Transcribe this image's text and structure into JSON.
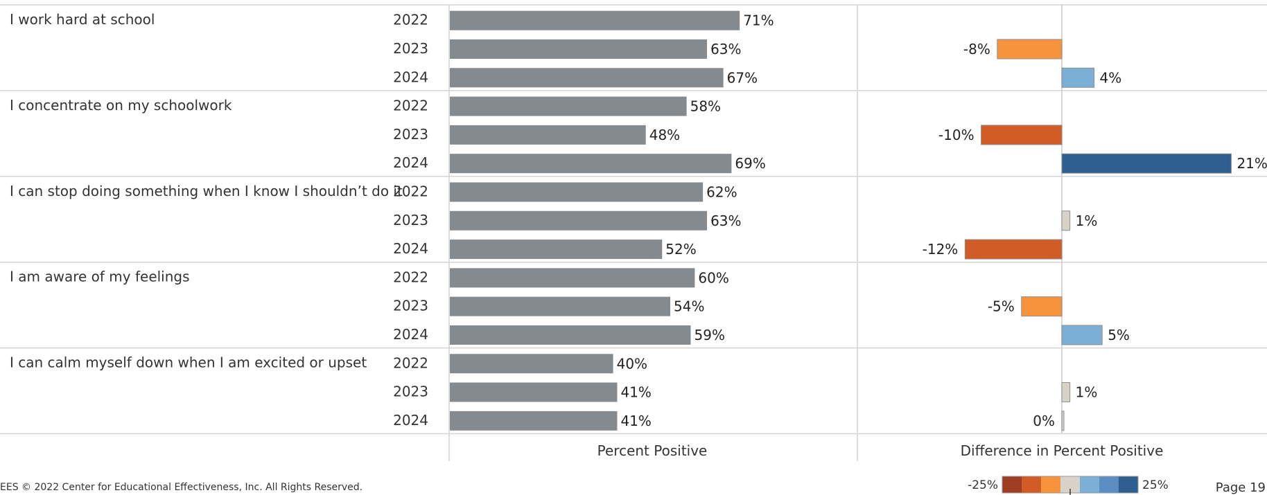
{
  "chart_data": {
    "type": "bar",
    "categories": [
      "I work hard at school",
      "I concentrate on my schoolwork",
      "I can stop doing something when I know I shouldn’t do it",
      "I am aware of my feelings",
      "I can calm myself down when I am excited or upset"
    ],
    "years": [
      "2022",
      "2023",
      "2024"
    ],
    "series": [
      {
        "name": "Percent Positive",
        "values": [
          [
            71,
            63,
            67
          ],
          [
            58,
            48,
            69
          ],
          [
            62,
            63,
            52
          ],
          [
            60,
            54,
            59
          ],
          [
            40,
            41,
            41
          ]
        ]
      },
      {
        "name": "Difference in Percent Positive",
        "values": [
          [
            null,
            -8,
            4
          ],
          [
            null,
            -10,
            21
          ],
          [
            null,
            1,
            -12
          ],
          [
            null,
            -5,
            5
          ],
          [
            null,
            1,
            0
          ]
        ]
      }
    ],
    "xlabel_left": "Percent Positive",
    "xlabel_right": "Difference in Percent Positive",
    "left_xlim": [
      0,
      100
    ],
    "right_xlim": [
      -25,
      25
    ],
    "value_suffix": "%",
    "bar_color": "#858a8f",
    "diff_color_scale": [
      {
        "min": -25,
        "max": -15,
        "color": "#9e3d22"
      },
      {
        "min": -15,
        "max": -10,
        "color": "#d25c26"
      },
      {
        "min": -10,
        "max": -3,
        "color": "#f7933d"
      },
      {
        "min": -3,
        "max": 3,
        "color": "#d8d3c8"
      },
      {
        "min": 3,
        "max": 10,
        "color": "#7bafd6"
      },
      {
        "min": 10,
        "max": 15,
        "color": "#5a8ec3"
      },
      {
        "min": 15,
        "max": 25,
        "color": "#2e5f8f"
      }
    ],
    "legend": {
      "min_label": "-25%",
      "max_label": "25%"
    },
    "grid": false
  },
  "footer": {
    "copyright": "EES © 2022 Center for Educational Effectiveness, Inc. All Rights Reserved.",
    "page": "Page 19"
  }
}
